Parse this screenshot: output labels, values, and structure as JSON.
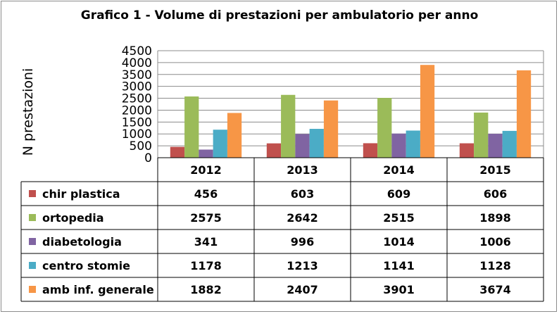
{
  "chart_data": {
    "type": "bar",
    "title": "Grafico 1 - Volume di prestazioni per ambulatorio per anno",
    "xlabel": "",
    "ylabel": "N prestazioni",
    "ylim": [
      0,
      4500
    ],
    "yticks": [
      0,
      500,
      1000,
      1500,
      2000,
      2500,
      3000,
      3500,
      4000,
      4500
    ],
    "grid": true,
    "legend_placement": "data-table-left",
    "categories": [
      "2012",
      "2013",
      "2014",
      "2015"
    ],
    "series": [
      {
        "name": "chir plastica",
        "color": "#c0504d",
        "values": [
          456,
          603,
          609,
          606
        ]
      },
      {
        "name": "ortopedia",
        "color": "#9bbb59",
        "values": [
          2575,
          2642,
          2515,
          1898
        ]
      },
      {
        "name": "diabetologia",
        "color": "#8064a2",
        "values": [
          341,
          996,
          1014,
          1006
        ]
      },
      {
        "name": "centro stomie",
        "color": "#4bacc6",
        "values": [
          1178,
          1213,
          1141,
          1128
        ]
      },
      {
        "name": "amb inf. generale",
        "color": "#f79646",
        "values": [
          1882,
          2407,
          3901,
          3674
        ]
      }
    ]
  }
}
